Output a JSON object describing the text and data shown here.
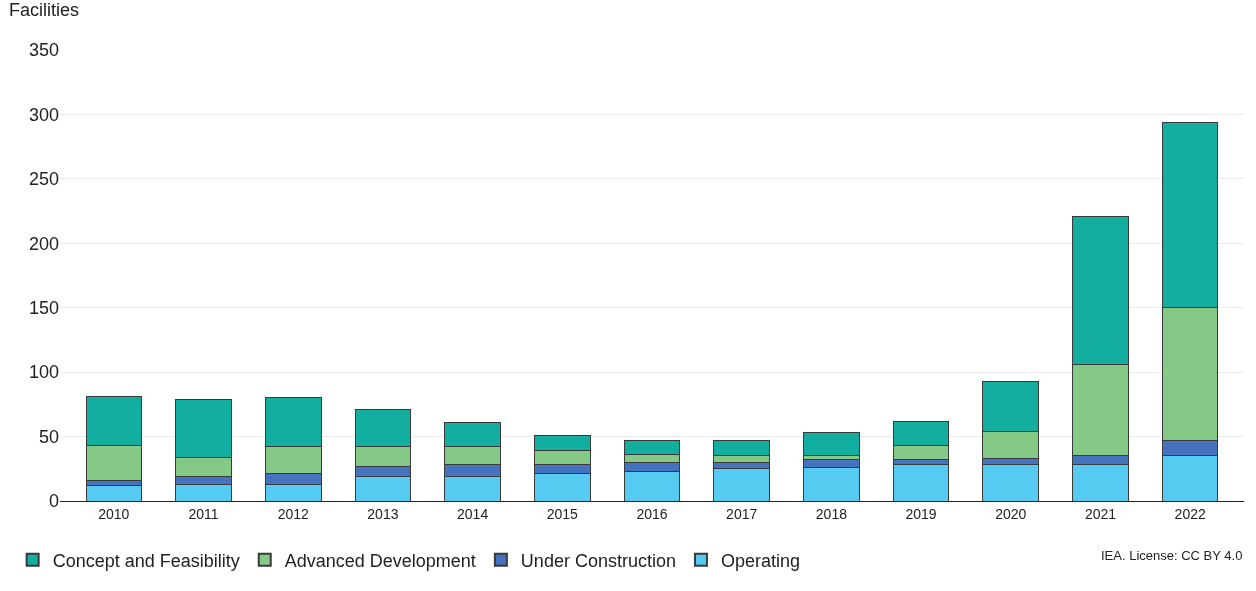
{
  "chart_data": {
    "type": "bar",
    "stacked": true,
    "ylabel": "Facilities",
    "categories": [
      "2010",
      "2011",
      "2012",
      "2013",
      "2014",
      "2015",
      "2016",
      "2017",
      "2018",
      "2019",
      "2020",
      "2021",
      "2022"
    ],
    "series": [
      {
        "name": "Operating",
        "color": "#56cbf2",
        "values": [
          12,
          13,
          13,
          19,
          19,
          21,
          23,
          25,
          26,
          28,
          28,
          28,
          35
        ]
      },
      {
        "name": "Under Construction",
        "color": "#4673c0",
        "values": [
          4,
          6,
          8,
          8,
          9,
          7,
          7,
          5,
          6,
          4,
          5,
          7,
          12
        ]
      },
      {
        "name": "Advanced Development",
        "color": "#85c987",
        "values": [
          27,
          15,
          21,
          15,
          14,
          11,
          6,
          5,
          3,
          11,
          21,
          71,
          103
        ]
      },
      {
        "name": "Concept and Feasibility",
        "color": "#12ae9f",
        "values": [
          38,
          45,
          38,
          29,
          19,
          12,
          11,
          12,
          18,
          19,
          39,
          115,
          144
        ]
      }
    ],
    "ylim": [
      0,
      350
    ],
    "yticks": [
      0,
      50,
      100,
      150,
      200,
      250,
      300,
      350
    ],
    "grid": "y",
    "legend": "bottom left",
    "annotations": [
      "IEA. License: CC BY 4.0"
    ]
  }
}
